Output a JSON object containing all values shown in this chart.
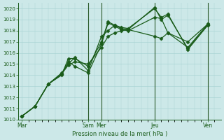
{
  "title": "",
  "xlabel": "Pression niveau de la mer( hPa )",
  "ylim": [
    1010,
    1020.5
  ],
  "yticks": [
    1010,
    1011,
    1012,
    1013,
    1014,
    1015,
    1016,
    1017,
    1018,
    1019,
    1020
  ],
  "xtick_labels": [
    "Mar",
    "Sam",
    "Mer",
    "Jeu",
    "Ven"
  ],
  "xtick_positions": [
    0,
    10,
    12,
    20,
    28
  ],
  "xlim": [
    -0.5,
    30
  ],
  "background_color": "#cce8e8",
  "grid_color": "#aad4d4",
  "line_color": "#1a5c1a",
  "lines": [
    {
      "x": [
        0,
        2,
        4,
        6,
        7,
        8,
        10,
        12,
        13,
        14,
        15,
        16,
        20,
        21,
        22,
        25,
        28
      ],
      "y": [
        1010.3,
        1011.2,
        1013.2,
        1014.2,
        1015.0,
        1015.6,
        1014.4,
        1017.5,
        1018.0,
        1018.5,
        1018.3,
        1018.2,
        1020.0,
        1019.2,
        1019.5,
        1016.3,
        1018.5
      ]
    },
    {
      "x": [
        0,
        2,
        4,
        6,
        7,
        8,
        10,
        12,
        13,
        14,
        15,
        16,
        20,
        21,
        22,
        25,
        28
      ],
      "y": [
        1010.3,
        1011.2,
        1013.2,
        1014.1,
        1015.2,
        1014.8,
        1014.2,
        1016.8,
        1018.7,
        1018.4,
        1018.1,
        1018.0,
        1019.2,
        1019.1,
        1017.8,
        1016.5,
        1018.6
      ]
    },
    {
      "x": [
        0,
        2,
        4,
        6,
        7,
        8,
        10,
        12,
        13,
        14,
        15,
        16,
        20,
        21,
        22,
        25,
        28
      ],
      "y": [
        1010.3,
        1011.2,
        1013.2,
        1014.0,
        1015.5,
        1015.5,
        1014.8,
        1017.0,
        1018.8,
        1018.5,
        1018.2,
        1018.1,
        1020.1,
        1019.0,
        1019.4,
        1016.4,
        1018.5
      ]
    },
    {
      "x": [
        0,
        2,
        4,
        6,
        7,
        8,
        10,
        12,
        13,
        14,
        15,
        16,
        20,
        21,
        22,
        25,
        28
      ],
      "y": [
        1010.3,
        1011.2,
        1013.2,
        1014.1,
        1014.9,
        1015.2,
        1015.0,
        1016.5,
        1017.5,
        1017.8,
        1018.0,
        1018.1,
        1017.5,
        1017.3,
        1017.8,
        1017.0,
        1018.6
      ]
    }
  ],
  "vlines": [
    10,
    12,
    20,
    28
  ],
  "marker": "D",
  "markersize": 2.5,
  "linewidth": 0.9,
  "figsize": [
    3.2,
    2.0
  ],
  "dpi": 100
}
